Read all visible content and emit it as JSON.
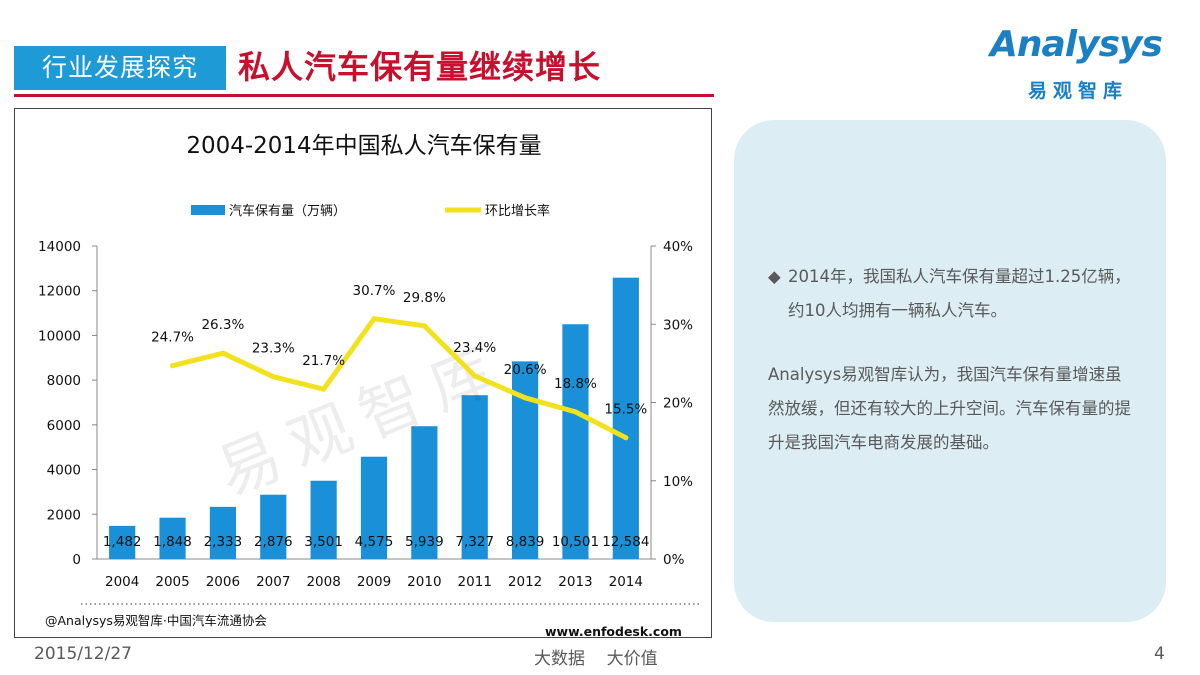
{
  "header": {
    "section_tag": "行业发展探究",
    "title": "私人汽车保有量继续增长"
  },
  "logo": {
    "word": "Analysys",
    "sub": "易观智库"
  },
  "chart_data": {
    "type": "bar+line",
    "title": "2004-2014年中国私人汽车保有量",
    "categories": [
      "2004",
      "2005",
      "2006",
      "2007",
      "2008",
      "2009",
      "2010",
      "2011",
      "2012",
      "2013",
      "2014"
    ],
    "series": [
      {
        "name": "汽车保有量（万辆）",
        "type": "bar",
        "axis": "left",
        "color": "#1a90d8",
        "values": [
          1482,
          1848,
          2333,
          2876,
          3501,
          4575,
          5939,
          7327,
          8839,
          10501,
          12584
        ],
        "labels": [
          "1,482",
          "1,848",
          "2,333",
          "2,876",
          "3,501",
          "4,575",
          "5,939",
          "7,327",
          "8,839",
          "10,501",
          "12,584"
        ]
      },
      {
        "name": "环比增长率",
        "type": "line",
        "axis": "right",
        "color": "#f2e21e",
        "values": [
          null,
          24.7,
          26.3,
          23.3,
          21.7,
          30.7,
          29.8,
          23.4,
          20.6,
          18.8,
          15.5
        ],
        "labels": [
          "",
          "24.7%",
          "26.3%",
          "23.3%",
          "21.7%",
          "30.7%",
          "29.8%",
          "23.4%",
          "20.6%",
          "18.8%",
          "15.5%"
        ]
      }
    ],
    "y_left": {
      "min": 0,
      "max": 14000,
      "ticks": [
        "0",
        "2000",
        "4000",
        "6000",
        "8000",
        "10000",
        "12000",
        "14000"
      ]
    },
    "y_right": {
      "min": 0,
      "max": 40,
      "ticks": [
        "0%",
        "10%",
        "20%",
        "30%",
        "40%"
      ]
    },
    "watermark": "易观智库",
    "source": "@Analysys易观智库·中国汽车流通协会",
    "site": "www.enfodesk.com"
  },
  "info": {
    "bullet_marker": "◆",
    "bullet_text": "2014年，我国私人汽车保有量超过1.25亿辆，约10人均拥有一辆私人汽车。",
    "paragraph": "Analysys易观智库认为，我国汽车保有量增速虽然放缓，但还有较大的上升空间。汽车保有量的提升是我国汽车电商发展的基础。"
  },
  "footer": {
    "date": "2015/12/27",
    "slogan": "大数据    大价值",
    "page": "4"
  }
}
